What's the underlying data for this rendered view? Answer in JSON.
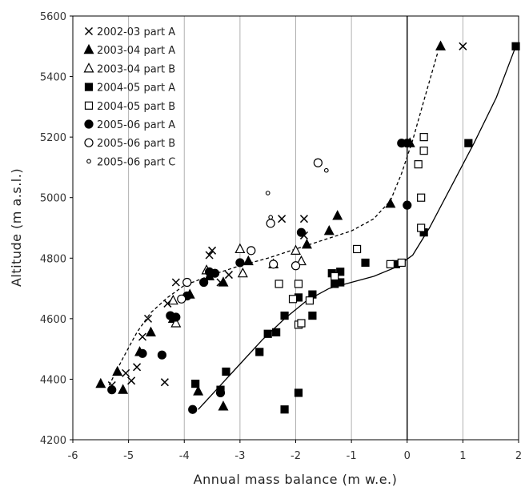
{
  "chart_data": {
    "type": "scatter",
    "title": "",
    "xlabel": "Annual mass balance (m w.e.)",
    "ylabel": "Altitude (m a.s.l.)",
    "xlim": [
      -6,
      2
    ],
    "ylim": [
      4200,
      5600
    ],
    "xticks": [
      -6,
      -5,
      -4,
      -3,
      -2,
      -1,
      0,
      1,
      2
    ],
    "yticks": [
      4200,
      4400,
      4600,
      4800,
      5000,
      5200,
      5400,
      5600
    ],
    "xtick_labels": [
      "-6",
      "-5",
      "-4",
      "-3",
      "-2",
      "-1",
      "0",
      "1",
      "2"
    ],
    "ytick_labels": [
      "4200",
      "4400",
      "4600",
      "4800",
      "5000",
      "5200",
      "5400",
      "5600"
    ],
    "grid": "vertical",
    "zero_line": 0,
    "legend_position": "top-left",
    "colors": {
      "markers": "#000000",
      "grid": "#b0b0b0",
      "axis": "#000000"
    },
    "series": [
      {
        "name": "2002-03 part A",
        "marker": "cross",
        "points": [
          [
            -5.3,
            4380
          ],
          [
            -5.05,
            4420
          ],
          [
            -4.95,
            4395
          ],
          [
            -4.85,
            4440
          ],
          [
            -4.75,
            4540
          ],
          [
            -4.65,
            4600
          ],
          [
            -4.35,
            4390
          ],
          [
            -4.3,
            4650
          ],
          [
            -4.15,
            4720
          ],
          [
            -3.55,
            4810
          ],
          [
            -3.5,
            4825
          ],
          [
            -3.35,
            4720
          ],
          [
            -3.2,
            4745
          ],
          [
            -2.25,
            4930
          ],
          [
            -1.85,
            4930
          ],
          [
            -1.85,
            4875
          ],
          [
            1.0,
            5500
          ]
        ]
      },
      {
        "name": "2003-04 part A",
        "marker": "filled-triangle",
        "points": [
          [
            -5.5,
            4385
          ],
          [
            -5.2,
            4425
          ],
          [
            -5.1,
            4365
          ],
          [
            -4.8,
            4490
          ],
          [
            -4.6,
            4555
          ],
          [
            -4.2,
            4600
          ],
          [
            -3.9,
            4680
          ],
          [
            -3.55,
            4740
          ],
          [
            -3.3,
            4720
          ],
          [
            -2.85,
            4790
          ],
          [
            -1.8,
            4845
          ],
          [
            -1.4,
            4890
          ],
          [
            -1.25,
            4940
          ],
          [
            -0.3,
            4980
          ],
          [
            0.05,
            5180
          ],
          [
            0.6,
            5500
          ],
          [
            -3.75,
            4360
          ],
          [
            -3.3,
            4310
          ]
        ]
      },
      {
        "name": "2003-04 part B",
        "marker": "open-triangle",
        "points": [
          [
            -4.2,
            4660
          ],
          [
            -4.15,
            4585
          ],
          [
            -3.6,
            4760
          ],
          [
            -3.0,
            4830
          ],
          [
            -2.95,
            4750
          ],
          [
            -2.4,
            4780
          ],
          [
            -2.0,
            4825
          ],
          [
            -1.9,
            4790
          ]
        ]
      },
      {
        "name": "2004-05 part A",
        "marker": "filled-square",
        "points": [
          [
            -3.8,
            4385
          ],
          [
            -3.35,
            4365
          ],
          [
            -3.25,
            4425
          ],
          [
            -2.65,
            4490
          ],
          [
            -2.5,
            4550
          ],
          [
            -2.35,
            4555
          ],
          [
            -2.2,
            4610
          ],
          [
            -2.2,
            4300
          ],
          [
            -1.95,
            4355
          ],
          [
            -1.95,
            4670
          ],
          [
            -1.7,
            4610
          ],
          [
            -1.7,
            4680
          ],
          [
            -1.35,
            4750
          ],
          [
            -1.3,
            4715
          ],
          [
            -1.2,
            4720
          ],
          [
            -1.2,
            4755
          ],
          [
            -0.75,
            4785
          ],
          [
            -0.2,
            4780
          ],
          [
            0.3,
            4885
          ],
          [
            1.1,
            5180
          ],
          [
            1.95,
            5500
          ]
        ]
      },
      {
        "name": "2004-05 part B",
        "marker": "open-square",
        "points": [
          [
            -2.3,
            4715
          ],
          [
            -2.05,
            4665
          ],
          [
            -1.95,
            4580
          ],
          [
            -1.9,
            4585
          ],
          [
            -1.95,
            4715
          ],
          [
            -1.75,
            4660
          ],
          [
            -1.3,
            4740
          ],
          [
            -0.9,
            4830
          ],
          [
            -0.3,
            4780
          ],
          [
            -0.1,
            4785
          ],
          [
            0.2,
            5110
          ],
          [
            0.25,
            5000
          ],
          [
            0.25,
            4900
          ],
          [
            0.3,
            5200
          ],
          [
            0.3,
            5155
          ]
        ]
      },
      {
        "name": "2005-06 part A",
        "marker": "filled-circle",
        "points": [
          [
            -5.3,
            4365
          ],
          [
            -4.75,
            4485
          ],
          [
            -4.4,
            4480
          ],
          [
            -4.25,
            4610
          ],
          [
            -4.15,
            4605
          ],
          [
            -3.95,
            4675
          ],
          [
            -3.85,
            4300
          ],
          [
            -3.65,
            4720
          ],
          [
            -3.55,
            4755
          ],
          [
            -3.45,
            4750
          ],
          [
            -3.35,
            4355
          ],
          [
            -3.0,
            4785
          ],
          [
            -1.9,
            4885
          ],
          [
            -0.1,
            5180
          ],
          [
            0.0,
            5180
          ],
          [
            0.0,
            4975
          ]
        ]
      },
      {
        "name": "2005-06 part B",
        "marker": "open-circle",
        "points": [
          [
            -4.05,
            4665
          ],
          [
            -3.95,
            4720
          ],
          [
            -2.8,
            4825
          ],
          [
            -2.45,
            4915
          ],
          [
            -2.4,
            4780
          ],
          [
            -2.0,
            4775
          ],
          [
            -1.6,
            5115
          ]
        ]
      },
      {
        "name": "2005-06 part C",
        "marker": "small-open-circle",
        "points": [
          [
            -2.5,
            5015
          ],
          [
            -2.45,
            4935
          ],
          [
            -1.45,
            5090
          ]
        ]
      }
    ],
    "fits": [
      {
        "style": "dashed",
        "points": [
          [
            -5.35,
            4380
          ],
          [
            -5.1,
            4470
          ],
          [
            -4.85,
            4555
          ],
          [
            -4.6,
            4620
          ],
          [
            -4.3,
            4670
          ],
          [
            -4.0,
            4710
          ],
          [
            -3.5,
            4745
          ],
          [
            -3.0,
            4775
          ],
          [
            -2.5,
            4800
          ],
          [
            -2.0,
            4830
          ],
          [
            -1.5,
            4860
          ],
          [
            -1.0,
            4890
          ],
          [
            -0.6,
            4930
          ],
          [
            -0.3,
            4990
          ],
          [
            -0.1,
            5080
          ],
          [
            0.1,
            5190
          ],
          [
            0.3,
            5320
          ],
          [
            0.55,
            5480
          ]
        ]
      },
      {
        "style": "solid",
        "points": [
          [
            -3.75,
            4300
          ],
          [
            -3.4,
            4370
          ],
          [
            -3.0,
            4450
          ],
          [
            -2.6,
            4530
          ],
          [
            -2.2,
            4600
          ],
          [
            -1.8,
            4660
          ],
          [
            -1.4,
            4700
          ],
          [
            -1.0,
            4720
          ],
          [
            -0.6,
            4740
          ],
          [
            -0.2,
            4770
          ],
          [
            0.1,
            4810
          ],
          [
            0.4,
            4900
          ],
          [
            0.8,
            5040
          ],
          [
            1.2,
            5180
          ],
          [
            1.6,
            5330
          ],
          [
            1.95,
            5500
          ]
        ]
      }
    ]
  }
}
